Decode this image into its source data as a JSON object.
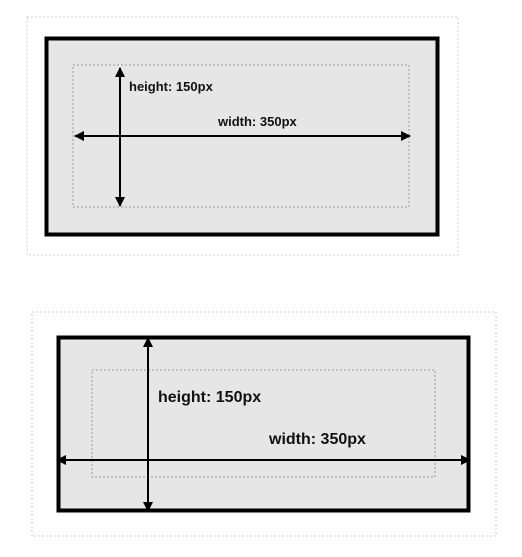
{
  "diagrams": [
    {
      "height_label": "height: 150px",
      "width_label": "width: 350px"
    },
    {
      "height_label": "height: 150px",
      "width_label": "width: 350px"
    }
  ],
  "colors": {
    "box_fill": "#e6e6e6",
    "border": "#000000",
    "dotted_outline": "#c8c8c8",
    "arrow": "#000000",
    "text": "#111111"
  }
}
